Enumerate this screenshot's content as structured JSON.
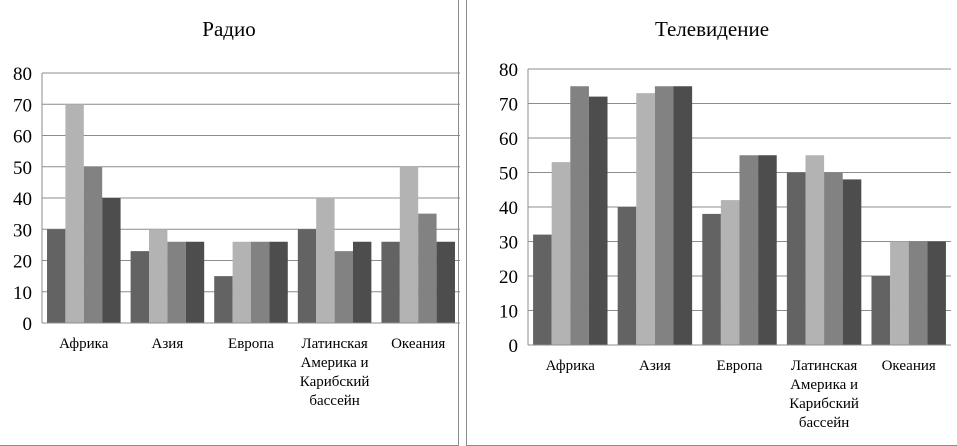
{
  "chart_data": [
    {
      "type": "bar",
      "title": "Радио",
      "categories": [
        [
          "Африка"
        ],
        [
          "Азия"
        ],
        [
          "Европа"
        ],
        [
          "Латинская",
          "Америка и",
          "Карибский",
          "бассейн"
        ],
        [
          "Океания"
        ]
      ],
      "series": [
        {
          "values": [
            30,
            23,
            15,
            30,
            26
          ],
          "color": "#636363"
        },
        {
          "values": [
            70,
            30,
            26,
            40,
            50
          ],
          "color": "#b3b3b3"
        },
        {
          "values": [
            50,
            26,
            26,
            23,
            35
          ],
          "color": "#828282"
        },
        {
          "values": [
            40,
            26,
            26,
            26,
            26
          ],
          "color": "#4d4d4d"
        }
      ],
      "yticks": [
        0,
        10,
        20,
        30,
        40,
        50,
        60,
        70,
        80
      ],
      "ylim": [
        0,
        80
      ],
      "grid": true,
      "legend": "none"
    },
    {
      "type": "bar",
      "title": "Телевидение",
      "categories": [
        [
          "Африка"
        ],
        [
          "Азия"
        ],
        [
          "Европа"
        ],
        [
          "Латинская",
          "Америка и",
          "Карибский",
          "бассейн"
        ],
        [
          "Океания"
        ]
      ],
      "series": [
        {
          "values": [
            32,
            40,
            38,
            50,
            20
          ],
          "color": "#636363"
        },
        {
          "values": [
            53,
            73,
            42,
            55,
            30
          ],
          "color": "#b3b3b3"
        },
        {
          "values": [
            75,
            75,
            55,
            50,
            30
          ],
          "color": "#828282"
        },
        {
          "values": [
            72,
            75,
            55,
            48,
            30
          ],
          "color": "#4d4d4d"
        }
      ],
      "yticks": [
        0,
        10,
        20,
        30,
        40,
        50,
        60,
        70,
        80
      ],
      "ylim": [
        0,
        80
      ],
      "grid": true,
      "legend": "none"
    }
  ]
}
